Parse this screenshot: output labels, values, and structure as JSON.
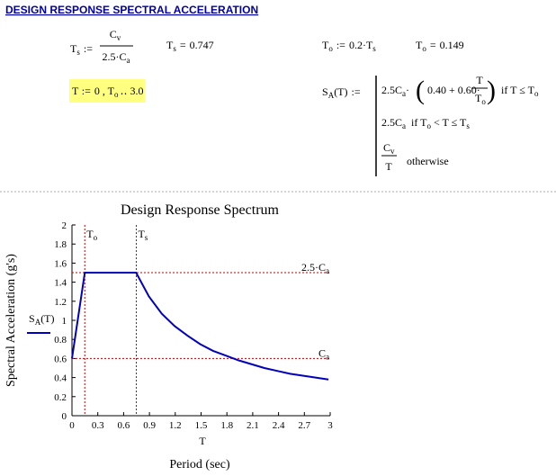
{
  "worksheet": {
    "title": "DESIGN RESPONSE SPECTRAL ACCELERATION",
    "ts_def": {
      "lhs": "T",
      "lhs_sub": "s",
      "op": ":=",
      "num": "C",
      "num_sub": "v",
      "den": "2.5·C",
      "den_sub": "a"
    },
    "ts_result": {
      "lhs": "T",
      "lhs_sub": "s",
      "op": "=",
      "value": 0.747
    },
    "to_def": {
      "lhs": "T",
      "lhs_sub": "o",
      "op": ":=",
      "rhs": "0.2·T",
      "rhs_sub": "s"
    },
    "to_result": {
      "lhs": "T",
      "lhs_sub": "o",
      "op": "=",
      "value": 0.149
    },
    "range_def": {
      "lhs": "T",
      "op": ":=",
      "rhs": "0 , T",
      "rhs_sub": "o",
      "rhs_end": "‥ 3.0"
    },
    "sa_def": {
      "lhs": "S",
      "lhs_sub": "A",
      "lhs_arg": "(T)",
      "op": ":=",
      "case1": {
        "expr": "2.5C",
        "expr_sub": "a",
        "mid": "·",
        "open": "(",
        "inner": "0.40 + 0.60·",
        "frac_num": "T",
        "frac_den": "T",
        "frac_den_sub": "o",
        "close": ")",
        "cond": "if  T ≤ T",
        "cond_sub": "o"
      },
      "case2": {
        "expr": "2.5C",
        "expr_sub": "a",
        "cond": "if  T",
        "cond_sub": "o",
        "cond_end": " < T ≤ T",
        "cond_end_sub": "s"
      },
      "case3": {
        "num": "C",
        "num_sub": "v",
        "den": "T",
        "cond": "otherwise"
      }
    }
  },
  "chart_data": {
    "type": "line",
    "title": "Design Response Spectrum",
    "x_var": "T",
    "x_label": "Period (sec)",
    "y_label": "Spectral Acceleration (g's)",
    "x": [
      0,
      0.149,
      0.298,
      0.447,
      0.596,
      0.745,
      0.894,
      1.043,
      1.192,
      1.341,
      1.49,
      1.639,
      1.788,
      1.937,
      2.086,
      2.235,
      2.384,
      2.533,
      2.682,
      2.831,
      2.98
    ],
    "series": [
      {
        "name": "S",
        "name_sub": "A",
        "name_arg": "(T)",
        "color": "#0000c0",
        "values": [
          0.6,
          1.5,
          1.5,
          1.5,
          1.5,
          1.5,
          1.25,
          1.07,
          0.94,
          0.84,
          0.75,
          0.68,
          0.63,
          0.58,
          0.54,
          0.5,
          0.47,
          0.44,
          0.42,
          0.4,
          0.38
        ]
      }
    ],
    "xlim": [
      0,
      3
    ],
    "xticks": [
      0,
      0.3,
      0.6,
      0.9,
      1.2,
      1.5,
      1.8,
      2.1,
      2.4,
      2.7,
      3
    ],
    "ylim": [
      0,
      2
    ],
    "yticks": [
      0,
      0.2,
      0.4,
      0.6,
      0.8,
      1,
      1.2,
      1.4,
      1.6,
      1.8,
      2
    ],
    "marker_color": "#c00000",
    "vlines": [
      {
        "value": 0.149,
        "label": "T",
        "label_sub": "o"
      },
      {
        "value": 0.747,
        "label": "T",
        "label_sub": "s"
      }
    ],
    "hlines": [
      {
        "value": 1.5,
        "label": "2.5·C",
        "label_sub": "a"
      },
      {
        "value": 0.6,
        "label": "C",
        "label_sub": "a"
      }
    ]
  }
}
